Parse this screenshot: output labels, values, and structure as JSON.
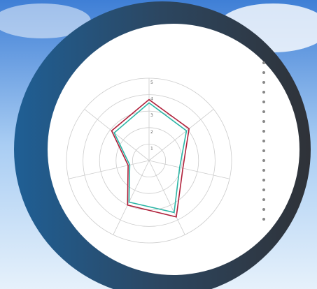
{
  "chart_data": {
    "type": "radar",
    "categories": [
      null,
      null,
      null,
      null,
      null,
      null,
      null
    ],
    "series": [
      {
        "color": "#b0203a",
        "values": [
          3.7,
          3.1,
          2.1,
          3.8,
          3.0,
          1.3,
          2.9
        ]
      },
      {
        "color": "#2bb5a5",
        "values": [
          3.5,
          2.9,
          1.9,
          3.5,
          2.8,
          1.2,
          2.7
        ]
      }
    ],
    "rlim": [
      0,
      5
    ],
    "rticks": [
      1,
      2,
      3,
      4,
      5
    ],
    "grid": true
  }
}
